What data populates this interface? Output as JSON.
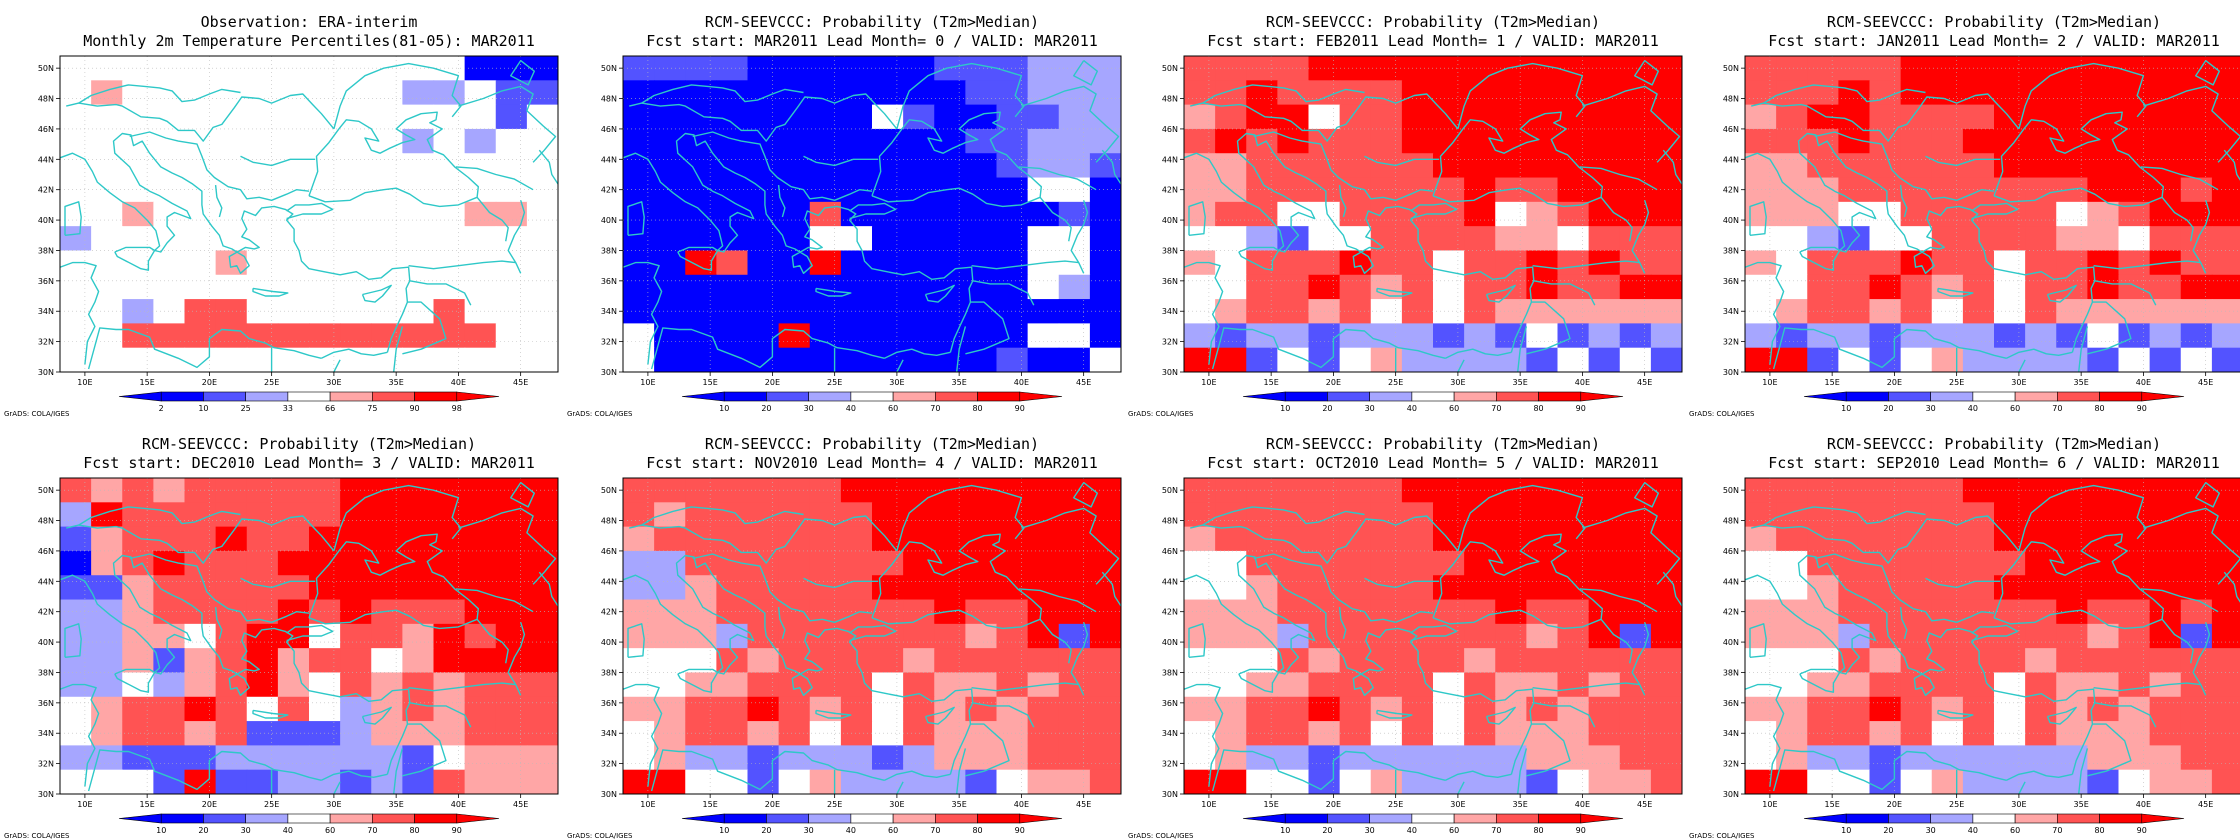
{
  "colors": {
    "blue_dark": "#0000ff",
    "blue_mid": "#5353ff",
    "blue_light": "#a6a6ff",
    "white": "#ffffff",
    "red_light": "#ffa6a6",
    "red_mid": "#ff5353",
    "red_dark": "#ff0000",
    "coast": "#2ec8c8",
    "grid": "#bbbbbb"
  },
  "lon_ticks": [
    "10E",
    "15E",
    "20E",
    "25E",
    "30E",
    "35E",
    "40E",
    "45E"
  ],
  "lat_ticks": [
    "30N",
    "32N",
    "34N",
    "36N",
    "38N",
    "40N",
    "42N",
    "44N",
    "46N",
    "48N",
    "50N"
  ],
  "credit": "GrADS: COLA/IGES",
  "legend_obs": [
    "2",
    "10",
    "25",
    "33",
    "66",
    "75",
    "90",
    "98"
  ],
  "legend_prob": [
    "10",
    "20",
    "30",
    "40",
    "60",
    "70",
    "80",
    "90"
  ],
  "panels": [
    {
      "title1": "Observation: ERA-interim",
      "title2": "Monthly 2m Temperature Percentiles(81-05): MAR2011",
      "legend": "obs",
      "grid": [
        "3333333333333000",
        "3433333333322311",
        "3333333333333313",
        "3333333333323233",
        "3333333333333333",
        "3333333333333333",
        "3343333333333443",
        "2333333333333333",
        "3333343333333333",
        "3333333333333333",
        "3323553333335333",
        "3355555555555533",
        "3333333333333333"
      ]
    },
    {
      "title1": "RCM-SEEVCCC: Probability (T2m>Median)",
      "title2": "Fcst start: MAR2011  Lead Month= 0 / VALID: MAR2011",
      "legend": "prob",
      "grid": [
        "1111000000111222",
        "0000000000011222",
        "0000000031001122",
        "0000000000011222",
        "0000000000001221",
        "0000000000000330",
        "0000005000000010",
        "0000003300000330",
        "0065006000000330",
        "0000000000000320",
        "0000000000000000",
        "3000060000000330",
        "3000000000001003"
      ]
    },
    {
      "title1": "RCM-SEEVCCC: Probability (T2m>Median)",
      "title2": "Fcst start: FEB2011  Lead Month= 1 / VALID: MAR2011",
      "legend": "prob",
      "grid": [
        "5555666666666666",
        "5565555666666666",
        "4566355666666666",
        "5656555666666666",
        "4455555566666666",
        "4455555556556666",
        "4553355556345666",
        "3321335555443555",
        "4355565535565655",
        "3355654535565566",
        "3455453535444444",
        "2122122212131212",
        "6613134222213131"
      ]
    },
    {
      "title1": "RCM-SEEVCCC: Probability (T2m>Median)",
      "title2": "Fcst start: JAN2011  Lead Month= 2 / VALID: MAR2011",
      "legend": "prob",
      "grid": [
        "5555566666666666",
        "5556566666666666",
        "4566555566666666",
        "5556555666666666",
        "4455555566666666",
        "4445555555566656",
        "4443355555345666",
        "3321335555443555",
        "4355565535565655",
        "3355654535565566",
        "3455453535444444",
        "2122122212131212",
        "6613134222213131"
      ]
    },
    {
      "title1": "RCM-SEEVCCC: Probability (T2m>Median)",
      "title2": "Fcst start: DEC2010  Lead Month= 3 / VALID: MAR2011",
      "legend": "prob",
      "grid": [
        "5454555556666666",
        "2655555556666666",
        "1455565566666666",
        "0456555666666666",
        "1145555566666666",
        "2245555656555666",
        "2244356635546566",
        "2241456455346666",
        "2232456435454555",
        "3455653532454555",
        "3455451112444555",
        "2211122222213444",
        "3331611221215444"
      ]
    },
    {
      "title1": "RCM-SEEVCCC: Probability (T2m>Median)",
      "title2": "Fcst start: NOV2010  Lead Month= 4 / VALID: MAR2011",
      "legend": "prob",
      "grid": [
        "5555555666666666",
        "5455555566666666",
        "4555555566666666",
        "2255555556666666",
        "2245555566666666",
        "4445555555655666",
        "4442555555545616",
        "3335455554555555",
        "3344555535445455",
        "4455654535454555",
        "3455453535444555",
        "3422122212444555",
        "6633134222213445"
      ]
    },
    {
      "title1": "RCM-SEEVCCC: Probability (T2m>Median)",
      "title2": "Fcst start: OCT2010  Lead Month= 5 / VALID: MAR2011",
      "legend": "prob",
      "grid": [
        "5555555666666666",
        "5555555566666666",
        "4555555566666666",
        "3355555556666666",
        "3345555566666666",
        "4445555555655666",
        "4442555555545616",
        "3335455554555555",
        "3344555535445455",
        "4455654535454555",
        "3455453535444555",
        "3422122222244455",
        "6633134222213445"
      ]
    },
    {
      "title1": "RCM-SEEVCCC: Probability (T2m>Median)",
      "title2": "Fcst start: SEP2010  Lead Month= 6 / VALID: MAR2011",
      "legend": "prob",
      "grid": [
        "5555555666666666",
        "5555555566666666",
        "4555555566666666",
        "3355555556666666",
        "3345555566666666",
        "4445555555655656",
        "4442555555545616",
        "3335455554555555",
        "3344555535445455",
        "4455654535454555",
        "3455453535444555",
        "3422122222244455",
        "6633134222213445"
      ]
    }
  ]
}
